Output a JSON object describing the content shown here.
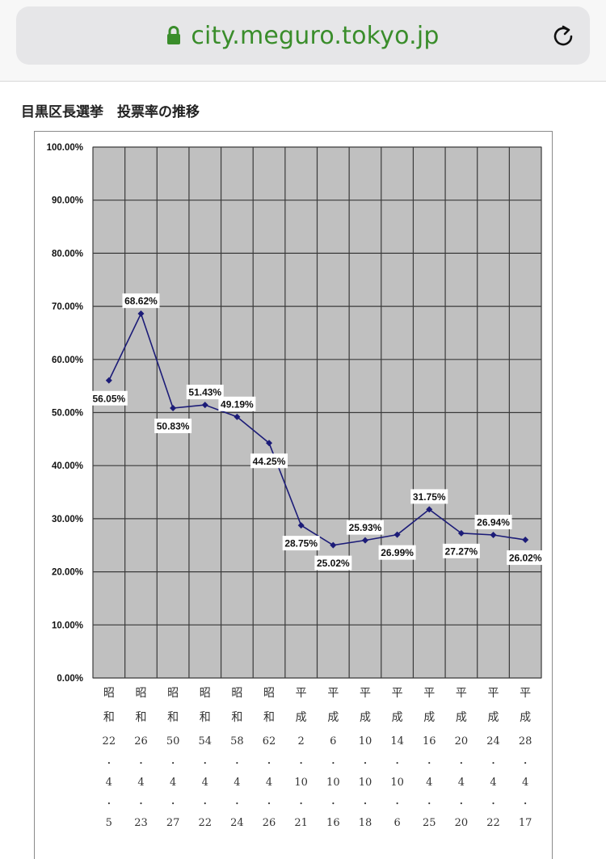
{
  "browser": {
    "url": "city.meguro.tokyo.jp",
    "icons": {
      "lock": "lock-icon",
      "reload": "reload-icon"
    },
    "url_color": "#3a8d2b"
  },
  "page": {
    "title": "目黒区長選挙　投票率の推移"
  },
  "chart_data": {
    "type": "line",
    "title": "目黒区長選挙　投票率の推移",
    "xlabel": "",
    "ylabel": "",
    "ylim": [
      0,
      100
    ],
    "y_ticks": [
      "0.00%",
      "10.00%",
      "20.00%",
      "30.00%",
      "40.00%",
      "50.00%",
      "60.00%",
      "70.00%",
      "80.00%",
      "90.00%",
      "100.00%"
    ],
    "grid": true,
    "plot_background": "#c0c0c0",
    "line_color": "#1c1c78",
    "categories": [
      {
        "era": "昭",
        "era2": "和",
        "year": "22",
        "d1": "・",
        "month": "4",
        "d2": "・",
        "day": "5"
      },
      {
        "era": "昭",
        "era2": "和",
        "year": "26",
        "d1": "・",
        "month": "4",
        "d2": "・",
        "day": "23"
      },
      {
        "era": "昭",
        "era2": "和",
        "year": "50",
        "d1": "・",
        "month": "4",
        "d2": "・",
        "day": "27"
      },
      {
        "era": "昭",
        "era2": "和",
        "year": "54",
        "d1": "・",
        "month": "4",
        "d2": "・",
        "day": "22"
      },
      {
        "era": "昭",
        "era2": "和",
        "year": "58",
        "d1": "・",
        "month": "4",
        "d2": "・",
        "day": "24"
      },
      {
        "era": "昭",
        "era2": "和",
        "year": "62",
        "d1": "・",
        "month": "4",
        "d2": "・",
        "day": "26"
      },
      {
        "era": "平",
        "era2": "成",
        "year": "2",
        "d1": "・",
        "month": "10",
        "d2": "・",
        "day": "21"
      },
      {
        "era": "平",
        "era2": "成",
        "year": "6",
        "d1": "・",
        "month": "10",
        "d2": "・",
        "day": "16"
      },
      {
        "era": "平",
        "era2": "成",
        "year": "10",
        "d1": "・",
        "month": "10",
        "d2": "・",
        "day": "18"
      },
      {
        "era": "平",
        "era2": "成",
        "year": "14",
        "d1": "・",
        "month": "10",
        "d2": "・",
        "day": "6"
      },
      {
        "era": "平",
        "era2": "成",
        "year": "16",
        "d1": "・",
        "month": "4",
        "d2": "・",
        "day": "25"
      },
      {
        "era": "平",
        "era2": "成",
        "year": "20",
        "d1": "・",
        "month": "4",
        "d2": "・",
        "day": "20"
      },
      {
        "era": "平",
        "era2": "成",
        "year": "24",
        "d1": "・",
        "month": "4",
        "d2": "・",
        "day": "22"
      },
      {
        "era": "平",
        "era2": "成",
        "year": "28",
        "d1": "・",
        "month": "4",
        "d2": "・",
        "day": "17"
      }
    ],
    "values": [
      56.05,
      68.62,
      50.83,
      51.43,
      49.19,
      44.25,
      28.75,
      25.02,
      25.93,
      26.99,
      31.75,
      27.27,
      26.94,
      26.02
    ],
    "data_labels": [
      "56.05%",
      "68.62%",
      "50.83%",
      "51.43%",
      "49.19%",
      "44.25%",
      "28.75%",
      "25.02%",
      "25.93%",
      "26.99%",
      "31.75%",
      "27.27%",
      "26.94%",
      "26.02%"
    ],
    "label_positions": [
      "below",
      "above",
      "below",
      "above",
      "above",
      "below",
      "below",
      "below",
      "above",
      "below",
      "above",
      "below",
      "above",
      "below"
    ]
  }
}
